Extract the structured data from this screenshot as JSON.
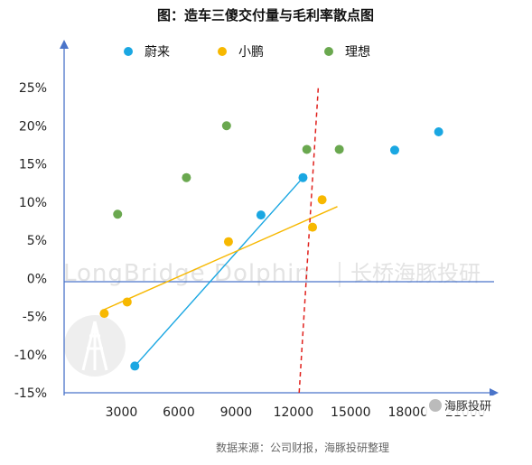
{
  "chart_data": {
    "type": "scatter",
    "title": "图：造车三傻交付量与毛利率散点图",
    "x_ticks": [
      "3000",
      "6000",
      "9000",
      "12000",
      "15000",
      "18000",
      "21000"
    ],
    "y_ticks": [
      "25%",
      "20%",
      "15%",
      "10%",
      "5%",
      "0%",
      "-5%",
      "-10%",
      "-15%"
    ],
    "xlim": [
      0,
      22500
    ],
    "ylim": [
      -15,
      25
    ],
    "grid": false,
    "legend_position": "top",
    "series": [
      {
        "name": "蔚来",
        "color": "#1aa7e2",
        "points": [
          [
            3700,
            -11.5
          ],
          [
            10300,
            8.3
          ],
          [
            12500,
            13.2
          ],
          [
            17300,
            16.8
          ],
          [
            19600,
            19.2
          ]
        ]
      },
      {
        "name": "小鹏",
        "color": "#f7b800",
        "points": [
          [
            2100,
            -4.6
          ],
          [
            3300,
            -3.1
          ],
          [
            8600,
            4.8
          ],
          [
            13000,
            6.7
          ],
          [
            13500,
            10.3
          ]
        ]
      },
      {
        "name": "理想",
        "color": "#6aa84f",
        "points": [
          [
            2800,
            8.4
          ],
          [
            6400,
            13.2
          ],
          [
            8500,
            20.0
          ],
          [
            12700,
            16.9
          ],
          [
            14400,
            16.9
          ]
        ]
      }
    ],
    "trend_lines": [
      {
        "series": "蔚来",
        "color": "#1aa7e2",
        "from": [
          3700,
          -11.5
        ],
        "to": [
          12500,
          13.2
        ]
      },
      {
        "series": "小鹏",
        "color": "#f7b800",
        "from": [
          2000,
          -4.2
        ],
        "to": [
          14300,
          9.4
        ]
      }
    ],
    "reference_line": {
      "color": "#e0201c",
      "style": "dashed",
      "from": [
        12300,
        -15
      ],
      "to": [
        13300,
        25
      ]
    }
  },
  "source_note": "数据来源：公司财报，海豚投研整理",
  "watermark": {
    "text": "LongBridge Dolphin",
    "text_cn": "长桥海豚投研"
  },
  "badge": "海豚投研"
}
